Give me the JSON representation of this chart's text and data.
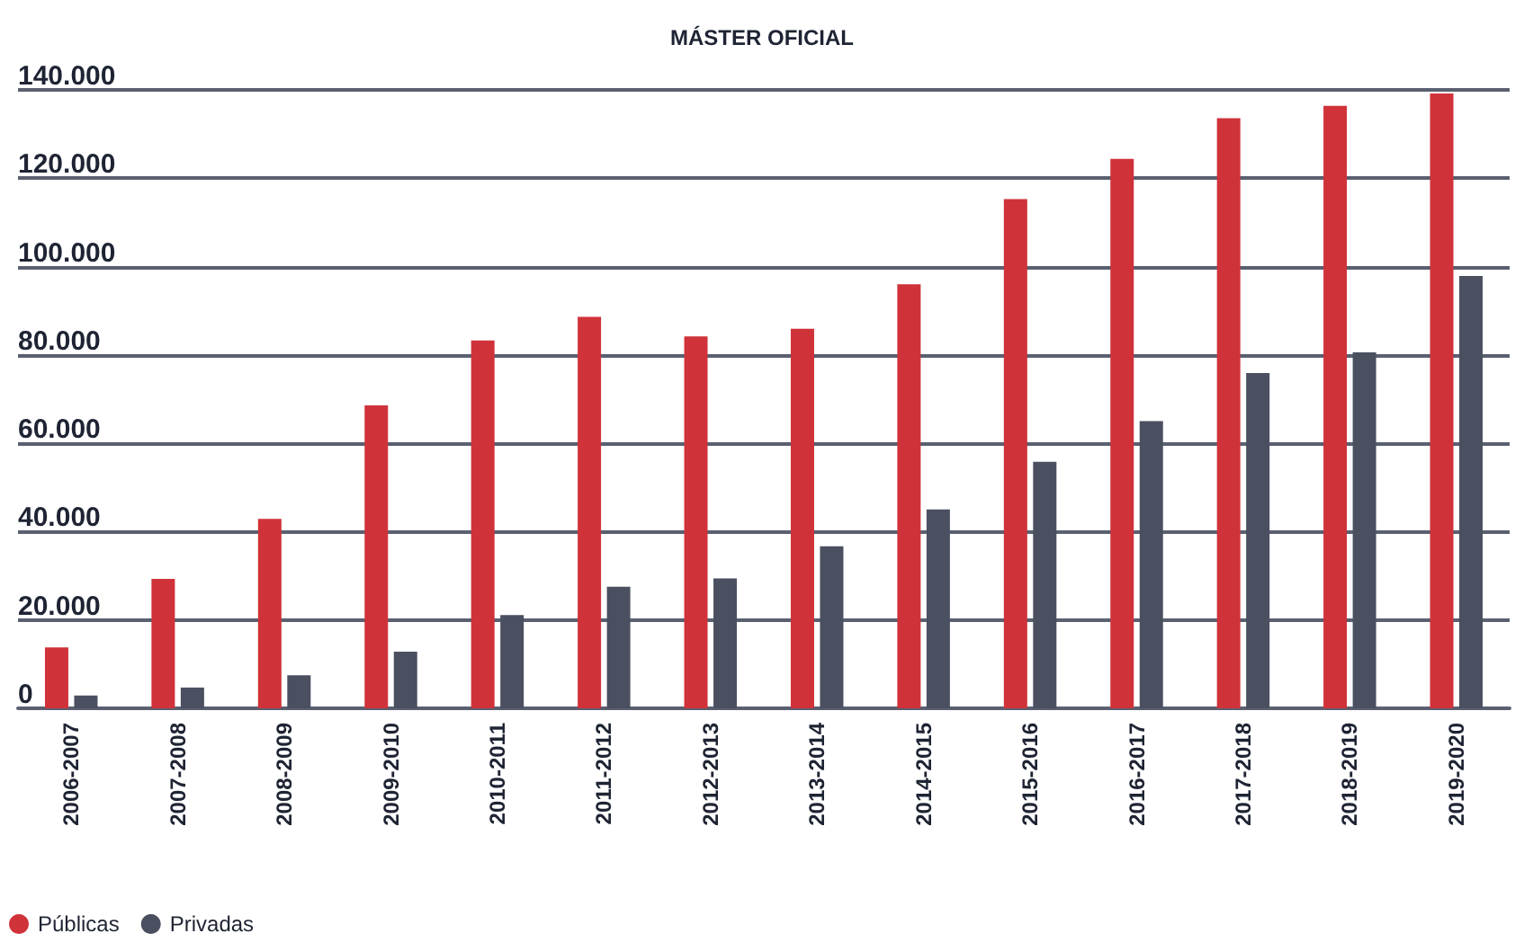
{
  "chart_data": {
    "type": "bar",
    "title": "MÁSTER OFICIAL",
    "categories": [
      "2006-2007",
      "2007-2008",
      "2008-2009",
      "2009-2010",
      "2010-2011",
      "2011-2012",
      "2012-2013",
      "2013-2014",
      "2014-2015",
      "2015-2016",
      "2016-2017",
      "2017-2018",
      "2018-2019",
      "2019-2020"
    ],
    "series": [
      {
        "name": "Públicas",
        "color": "#d0323a",
        "values": [
          13800,
          29300,
          42900,
          68600,
          83300,
          88600,
          84200,
          85900,
          96000,
          115300,
          124400,
          133600,
          136400,
          139200
        ]
      },
      {
        "name": "Privadas",
        "color": "#4a5060",
        "values": [
          2900,
          4700,
          7500,
          12800,
          21100,
          27500,
          29400,
          36700,
          45000,
          55800,
          65000,
          75900,
          80600,
          97900
        ]
      }
    ],
    "ylim": [
      0,
      140000
    ],
    "yticks": [
      {
        "value": 0,
        "label": "0"
      },
      {
        "value": 20000,
        "label": "20.000"
      },
      {
        "value": 40000,
        "label": "40.000"
      },
      {
        "value": 60000,
        "label": "60.000"
      },
      {
        "value": 80000,
        "label": "80.000"
      },
      {
        "value": 100000,
        "label": "100.000"
      },
      {
        "value": 120000,
        "label": "120.000"
      },
      {
        "value": 140000,
        "label": "140.000"
      }
    ],
    "grid": "y",
    "legend": "bottom left"
  }
}
